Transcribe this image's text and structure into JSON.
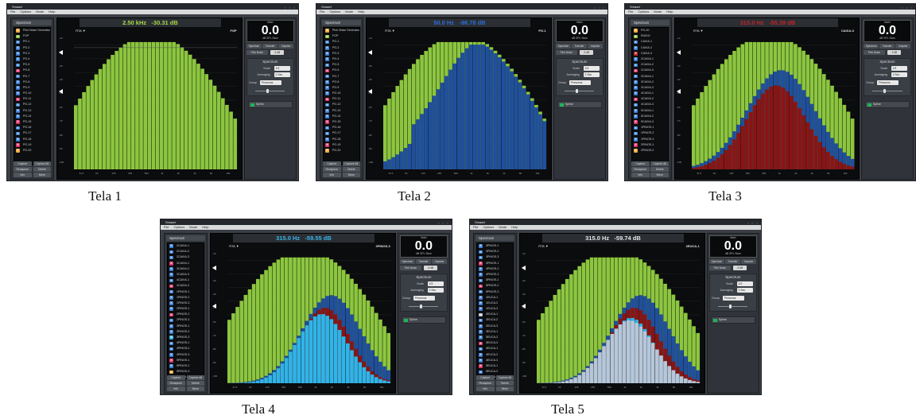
{
  "common": {
    "app_title": "Smaart",
    "window_controls": "○ ○ ○",
    "menu": [
      "File",
      "Options",
      "Mode",
      "Help"
    ],
    "spectrum_tab": "Spectrum",
    "buttons": {
      "capture": "Capture",
      "capture_all": "Capture All",
      "recapture": "Recapture",
      "delete": "Delete",
      "info": "Info",
      "move": "Move"
    },
    "meter": {
      "label": "Main",
      "value": "0.0",
      "unit": "dB SPL Slow"
    },
    "tabs": [
      "Spectrum",
      "Transfer",
      "Impulse"
    ],
    "pink_noise": "Pink Noise",
    "pink_level": "-3 dB",
    "panel_title": "Spectrum",
    "scale_label": "Scale",
    "scale_value": "1/3",
    "averaging_label": "Averaging",
    "averaging_value": "2 Sec",
    "group_label": "Group",
    "group_value": "Presonus",
    "toggle_label": "Spline",
    "plot_tag": "RTA ▼",
    "y_ticks": [
      "-10",
      "-20",
      "-30",
      "-40",
      "-50",
      "-60",
      "-70",
      "-80",
      "-90",
      "-100"
    ],
    "x_ticks": [
      "31.5",
      "63",
      "125",
      "250",
      "500",
      "1k",
      "2k",
      "4k",
      "8k",
      "16k"
    ],
    "colors": {
      "green": "#8cc63f",
      "blue": "#1f4f9e",
      "red": "#8a1414",
      "cyan": "#2fb4e8",
      "grey": "#b8c6d8"
    }
  },
  "screens": [
    {
      "caption": "Tela 1",
      "freq": "2.50 kHz",
      "level": "-30.31 dB",
      "readout_color": "#a7d94b",
      "trace_name": "FGP",
      "list": [
        {
          "name": "Pink Noise Generator",
          "color": "#f2a93b"
        },
        {
          "name": "FGP",
          "color": "#8cc63f"
        },
        {
          "name": "PG-1",
          "color": "#3a7fd5"
        },
        {
          "name": "PG-2",
          "color": "#3a7fd5"
        },
        {
          "name": "PG-3",
          "color": "#3a7fd5"
        },
        {
          "name": "PG-4",
          "color": "#3a7fd5"
        },
        {
          "name": "PG-5",
          "color": "#3a7fd5"
        },
        {
          "name": "PG-6",
          "color": "#e0356e"
        },
        {
          "name": "PG-7",
          "color": "#3a7fd5"
        },
        {
          "name": "PG-8",
          "color": "#3a7fd5"
        },
        {
          "name": "PG-9",
          "color": "#3a7fd5"
        },
        {
          "name": "PG-10",
          "color": "#3a7fd5"
        },
        {
          "name": "PG-11",
          "color": "#e0356e"
        },
        {
          "name": "PG-12",
          "color": "#3a7fd5"
        },
        {
          "name": "PG-13",
          "color": "#3a7fd5"
        },
        {
          "name": "PG-14",
          "color": "#3a7fd5"
        },
        {
          "name": "PG-15",
          "color": "#e0356e"
        },
        {
          "name": "PG-16",
          "color": "#3a7fd5"
        },
        {
          "name": "PG-17",
          "color": "#3a7fd5"
        },
        {
          "name": "PG-18",
          "color": "#3a7fd5"
        },
        {
          "name": "PG-19",
          "color": "#e0356e"
        },
        {
          "name": "PG-20",
          "color": "#f2a93b"
        }
      ]
    },
    {
      "caption": "Tela 2",
      "freq": "50.0 Hz",
      "level": "-98.78 dB",
      "readout_color": "#2a6fd6",
      "trace_name": "PG-1",
      "list": [
        {
          "name": "Pink Noise Generator",
          "color": "#f2a93b"
        },
        {
          "name": "FGP",
          "color": "#8cc63f"
        },
        {
          "name": "PG-1",
          "color": "#3a7fd5"
        },
        {
          "name": "PG-2",
          "color": "#3a7fd5"
        },
        {
          "name": "PG-3",
          "color": "#3a7fd5"
        },
        {
          "name": "PG-4",
          "color": "#3a7fd5"
        },
        {
          "name": "PG-5",
          "color": "#3a7fd5"
        },
        {
          "name": "PG-6",
          "color": "#e0356e"
        },
        {
          "name": "PG-7",
          "color": "#3a7fd5"
        },
        {
          "name": "PG-8",
          "color": "#3a7fd5"
        },
        {
          "name": "PG-9",
          "color": "#3a7fd5"
        },
        {
          "name": "PG-10",
          "color": "#3a7fd5"
        },
        {
          "name": "PG-11",
          "color": "#e0356e"
        },
        {
          "name": "PG-12",
          "color": "#3a7fd5"
        },
        {
          "name": "PG-13",
          "color": "#3a7fd5"
        },
        {
          "name": "PG-14",
          "color": "#3a7fd5"
        },
        {
          "name": "PG-15",
          "color": "#e0356e"
        },
        {
          "name": "PG-16",
          "color": "#3a7fd5"
        },
        {
          "name": "PG-17",
          "color": "#3a7fd5"
        },
        {
          "name": "PG-18",
          "color": "#3a7fd5"
        },
        {
          "name": "PG-19",
          "color": "#e0356e"
        },
        {
          "name": "PG-20",
          "color": "#f2a93b"
        }
      ]
    },
    {
      "caption": "Tela 3",
      "freq": "315.0 Hz",
      "level": "-55.39 dB",
      "readout_color": "#c0262a",
      "trace_name": "CAIXA-3",
      "list": [
        {
          "name": "PG-20",
          "color": "#f2a93b"
        },
        {
          "name": "RUIDO",
          "color": "#8cc63f"
        },
        {
          "name": "CAIXA-1",
          "color": "#3a7fd5"
        },
        {
          "name": "CAIXA-2",
          "color": "#3a7fd5"
        },
        {
          "name": "CAIXA-3",
          "color": "#c0262a"
        },
        {
          "name": "2CAIXA-1",
          "color": "#3a7fd5"
        },
        {
          "name": "2CAIXA-2",
          "color": "#3a7fd5"
        },
        {
          "name": "2CAIXA-3",
          "color": "#e0356e"
        },
        {
          "name": "3CAIXA-1",
          "color": "#3a7fd5"
        },
        {
          "name": "3CAIXA-2",
          "color": "#3a7fd5"
        },
        {
          "name": "3CAIXA-3",
          "color": "#3a7fd5"
        },
        {
          "name": "4CAIXA-1",
          "color": "#3a7fd5"
        },
        {
          "name": "4CAIXA-2",
          "color": "#e0356e"
        },
        {
          "name": "4CAIXA-3",
          "color": "#3a7fd5"
        },
        {
          "name": "5CAIXA-1",
          "color": "#3a7fd5"
        },
        {
          "name": "5CAIXA-2",
          "color": "#3a7fd5"
        },
        {
          "name": "5CAIXA-3",
          "color": "#e0356e"
        },
        {
          "name": "1PINOS-1",
          "color": "#3a7fd5"
        },
        {
          "name": "1PINOS-2",
          "color": "#3a7fd5"
        },
        {
          "name": "1PINOS-3",
          "color": "#3a7fd5"
        },
        {
          "name": "2PINOS-1",
          "color": "#e0356e"
        },
        {
          "name": "2PINOS-2",
          "color": "#f2a93b"
        }
      ]
    },
    {
      "caption": "Tela 4",
      "freq": "315.0 Hz",
      "level": "-59.55 dB",
      "readout_color": "#38b6ea",
      "trace_name": "3PINOS-3",
      "list": [
        {
          "name": "2CAIXA-1",
          "color": "#3a7fd5"
        },
        {
          "name": "2CAIXA-2",
          "color": "#3a7fd5"
        },
        {
          "name": "2CAIXA-3",
          "color": "#3a7fd5"
        },
        {
          "name": "3CAIXA-1",
          "color": "#e0356e"
        },
        {
          "name": "3CAIXA-2",
          "color": "#3a7fd5"
        },
        {
          "name": "3CAIXA-3",
          "color": "#3a7fd5"
        },
        {
          "name": "4CAIXA-1",
          "color": "#3a7fd5"
        },
        {
          "name": "4CAIXA-2",
          "color": "#e0356e"
        },
        {
          "name": "1PINOS-1",
          "color": "#3a7fd5"
        },
        {
          "name": "1PINOS-2",
          "color": "#3a7fd5"
        },
        {
          "name": "1PINOS-3",
          "color": "#3a7fd5"
        },
        {
          "name": "2PINOS-1",
          "color": "#3a7fd5"
        },
        {
          "name": "2PINOS-2",
          "color": "#e0356e"
        },
        {
          "name": "2PINOS-3",
          "color": "#3a7fd5"
        },
        {
          "name": "3PINOS-1",
          "color": "#3a7fd5"
        },
        {
          "name": "3PINOS-2",
          "color": "#3a7fd5"
        },
        {
          "name": "3PINOS-3",
          "color": "#38b6ea"
        },
        {
          "name": "4PINOS-1",
          "color": "#3a7fd5"
        },
        {
          "name": "4PINOS-2",
          "color": "#3a7fd5"
        },
        {
          "name": "4PINOS-3",
          "color": "#3a7fd5"
        },
        {
          "name": "5PINOS-1",
          "color": "#e0356e"
        },
        {
          "name": "5PINOS-2",
          "color": "#3a7fd5"
        },
        {
          "name": "5PINOS-3",
          "color": "#f2a93b"
        },
        {
          "name": "3EUCA-1",
          "color": "#3a7fd5"
        }
      ]
    },
    {
      "caption": "Tela 5",
      "freq": "315.0 Hz",
      "level": "-59.74 dB",
      "readout_color": "#e6e6e6",
      "trace_name": "2EUCA-1",
      "list": [
        {
          "name": "3PINOS-1",
          "color": "#3a7fd5"
        },
        {
          "name": "3PINOS-2",
          "color": "#3a7fd5"
        },
        {
          "name": "3PINOS-3",
          "color": "#3a7fd5"
        },
        {
          "name": "4PINOS-1",
          "color": "#e0356e"
        },
        {
          "name": "4PINOS-2",
          "color": "#3a7fd5"
        },
        {
          "name": "4PINOS-3",
          "color": "#3a7fd5"
        },
        {
          "name": "5PINOS-1",
          "color": "#3a7fd5"
        },
        {
          "name": "5PINOS-2",
          "color": "#e0356e"
        },
        {
          "name": "5PINOS-3",
          "color": "#3a7fd5"
        },
        {
          "name": "1EUCA-1",
          "color": "#3a7fd5"
        },
        {
          "name": "1EUCA-2",
          "color": "#3a7fd5"
        },
        {
          "name": "1EUCA-3",
          "color": "#3a7fd5"
        },
        {
          "name": "2EUCA-1",
          "color": "#b8c6d8"
        },
        {
          "name": "2EUCA-2",
          "color": "#3a7fd5"
        },
        {
          "name": "2EUCA-3",
          "color": "#3a7fd5"
        },
        {
          "name": "3EUCA-1",
          "color": "#3a7fd5"
        },
        {
          "name": "3EUCA-2",
          "color": "#3a7fd5"
        },
        {
          "name": "3EUCA-3",
          "color": "#e0356e"
        },
        {
          "name": "4EUCA-1",
          "color": "#3a7fd5"
        },
        {
          "name": "4EUCA-2",
          "color": "#3a7fd5"
        },
        {
          "name": "4EUCA-3",
          "color": "#3a7fd5"
        },
        {
          "name": "5EUCA-1",
          "color": "#e0356e"
        },
        {
          "name": "5EUCA-2",
          "color": "#3a7fd5"
        },
        {
          "name": "5EUCA-3",
          "color": "#f2a93b"
        }
      ]
    }
  ]
}
